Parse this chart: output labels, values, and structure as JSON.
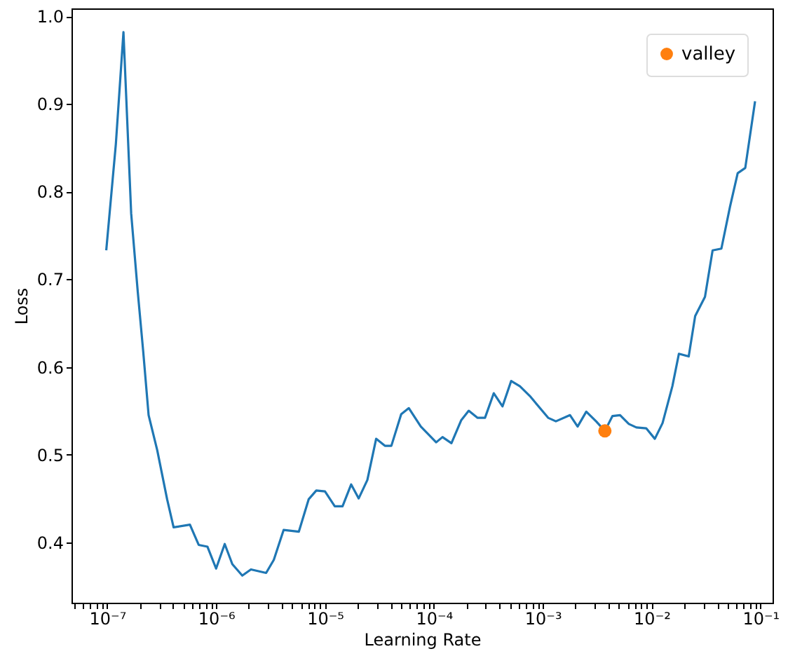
{
  "chart_data": {
    "type": "line",
    "xlabel": "Learning Rate",
    "ylabel": "Loss",
    "log": "x",
    "grid": false,
    "legend": "top right",
    "xlim": [
      4.7e-08,
      0.129
    ],
    "ylim": [
      0.331,
      1.009
    ],
    "xticks": [
      {
        "value": 5e-08,
        "label": null
      },
      {
        "value": 6e-08,
        "label": null
      },
      {
        "value": 7e-08,
        "label": null
      },
      {
        "value": 8e-08,
        "label": null
      },
      {
        "value": 9e-08,
        "label": null
      },
      {
        "value": 1e-07,
        "label": "10⁻⁷"
      },
      {
        "value": 2e-07,
        "label": null
      },
      {
        "value": 3e-07,
        "label": null
      },
      {
        "value": 4e-07,
        "label": null
      },
      {
        "value": 5e-07,
        "label": null
      },
      {
        "value": 6e-07,
        "label": null
      },
      {
        "value": 7e-07,
        "label": null
      },
      {
        "value": 8e-07,
        "label": null
      },
      {
        "value": 9e-07,
        "label": null
      },
      {
        "value": 1e-06,
        "label": "10⁻⁶"
      },
      {
        "value": 2e-06,
        "label": null
      },
      {
        "value": 3e-06,
        "label": null
      },
      {
        "value": 4e-06,
        "label": null
      },
      {
        "value": 5e-06,
        "label": null
      },
      {
        "value": 6e-06,
        "label": null
      },
      {
        "value": 7e-06,
        "label": null
      },
      {
        "value": 8e-06,
        "label": null
      },
      {
        "value": 9e-06,
        "label": null
      },
      {
        "value": 1e-05,
        "label": "10⁻⁵"
      },
      {
        "value": 2e-05,
        "label": null
      },
      {
        "value": 3e-05,
        "label": null
      },
      {
        "value": 4e-05,
        "label": null
      },
      {
        "value": 5e-05,
        "label": null
      },
      {
        "value": 6e-05,
        "label": null
      },
      {
        "value": 7e-05,
        "label": null
      },
      {
        "value": 8e-05,
        "label": null
      },
      {
        "value": 9e-05,
        "label": null
      },
      {
        "value": 0.0001,
        "label": "10⁻⁴"
      },
      {
        "value": 0.0002,
        "label": null
      },
      {
        "value": 0.0003,
        "label": null
      },
      {
        "value": 0.0004,
        "label": null
      },
      {
        "value": 0.0005,
        "label": null
      },
      {
        "value": 0.0006,
        "label": null
      },
      {
        "value": 0.0007,
        "label": null
      },
      {
        "value": 0.0008,
        "label": null
      },
      {
        "value": 0.0009,
        "label": null
      },
      {
        "value": 0.001,
        "label": "10⁻³"
      },
      {
        "value": 0.002,
        "label": null
      },
      {
        "value": 0.003,
        "label": null
      },
      {
        "value": 0.004,
        "label": null
      },
      {
        "value": 0.005,
        "label": null
      },
      {
        "value": 0.006,
        "label": null
      },
      {
        "value": 0.007,
        "label": null
      },
      {
        "value": 0.008,
        "label": null
      },
      {
        "value": 0.009,
        "label": null
      },
      {
        "value": 0.01,
        "label": "10⁻²"
      },
      {
        "value": 0.02,
        "label": null
      },
      {
        "value": 0.03,
        "label": null
      },
      {
        "value": 0.04,
        "label": null
      },
      {
        "value": 0.05,
        "label": null
      },
      {
        "value": 0.06,
        "label": null
      },
      {
        "value": 0.07,
        "label": null
      },
      {
        "value": 0.08,
        "label": null
      },
      {
        "value": 0.09,
        "label": null
      },
      {
        "value": 0.1,
        "label": "10⁻¹"
      }
    ],
    "yticks": [
      0.4,
      0.5,
      0.6,
      0.7,
      0.8,
      0.9,
      {
        "value": 1.0,
        "label": "1.0"
      }
    ],
    "series": [
      {
        "color": "#1f77b4",
        "x": [
          9.8e-08,
          1.2e-07,
          1.41e-07,
          1.66e-07,
          1.91e-07,
          2.14e-07,
          2.4e-07,
          2.88e-07,
          3.55e-07,
          4.07e-07,
          5.75e-07,
          6.92e-07,
          8.32e-07,
          1e-06,
          1.2e-06,
          1.41e-06,
          1.74e-06,
          2.09e-06,
          2.88e-06,
          3.39e-06,
          4.17e-06,
          5.75e-06,
          7.08e-06,
          8.32e-06,
          1e-05,
          1.23e-05,
          1.45e-05,
          1.74e-05,
          2.04e-05,
          2.45e-05,
          2.95e-05,
          3.55e-05,
          4.07e-05,
          5.01e-05,
          5.89e-05,
          7.59e-05,
          0.000105,
          0.00012,
          0.000145,
          0.000178,
          0.000209,
          0.000251,
          0.000295,
          0.000355,
          0.000427,
          0.000513,
          0.000617,
          0.000759,
          0.00112,
          0.00132,
          0.00178,
          0.00209,
          0.00251,
          0.00309,
          0.00372,
          0.00437,
          0.00513,
          0.00617,
          0.00724,
          0.00891,
          0.0107,
          0.0126,
          0.0155,
          0.0178,
          0.0219,
          0.0251,
          0.0309,
          0.0363,
          0.0437,
          0.0525,
          0.0617,
          0.0724,
          0.0891
        ],
        "values": [
          0.733,
          0.854,
          0.982,
          0.775,
          0.685,
          0.618,
          0.545,
          0.505,
          0.449,
          0.417,
          0.42,
          0.397,
          0.395,
          0.37,
          0.398,
          0.375,
          0.362,
          0.369,
          0.365,
          0.38,
          0.414,
          0.412,
          0.449,
          0.459,
          0.458,
          0.441,
          0.441,
          0.466,
          0.45,
          0.471,
          0.518,
          0.51,
          0.51,
          0.546,
          0.553,
          0.532,
          0.514,
          0.52,
          0.513,
          0.539,
          0.55,
          0.542,
          0.542,
          0.57,
          0.555,
          0.584,
          0.578,
          0.567,
          0.542,
          0.538,
          0.545,
          0.532,
          0.549,
          0.538,
          0.527,
          0.544,
          0.545,
          0.535,
          0.531,
          0.53,
          0.518,
          0.536,
          0.578,
          0.615,
          0.612,
          0.658,
          0.68,
          0.733,
          0.735,
          0.783,
          0.821,
          0.827,
          0.903
        ]
      },
      {
        "type": "scatter",
        "name": "valley",
        "color": "#ff7f0e",
        "marker": "circle",
        "x": [
          0.00372
        ],
        "values": [
          0.527
        ]
      }
    ]
  }
}
